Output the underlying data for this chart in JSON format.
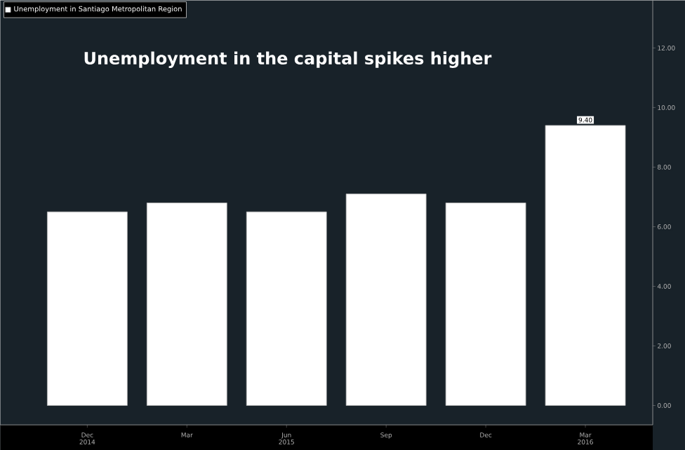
{
  "chart_data": {
    "type": "bar",
    "title": "Unemployment in the capital spikes higher",
    "categories": [
      "Dec 2014",
      "Mar",
      "Jun 2015",
      "Sep",
      "Dec",
      "Mar 2016"
    ],
    "series": [
      {
        "name": "Unemployment in Santiago Metropolitan Region",
        "color": "#ffffff",
        "values": [
          6.5,
          6.8,
          6.5,
          7.1,
          6.8,
          9.4
        ],
        "value_labels": [
          null,
          null,
          null,
          null,
          null,
          "9.40"
        ]
      }
    ],
    "ylim": [
      -0.65,
      13.6
    ],
    "yticks": [
      {
        "value": 0,
        "label": "0.00"
      },
      {
        "value": 2,
        "label": "2.00"
      },
      {
        "value": 4,
        "label": "4.00"
      },
      {
        "value": 6,
        "label": "6.00"
      },
      {
        "value": 8,
        "label": "8.00"
      },
      {
        "value": 10,
        "label": "10.00"
      },
      {
        "value": 12,
        "label": "12.00"
      }
    ],
    "legend": "top left",
    "grid": false
  }
}
